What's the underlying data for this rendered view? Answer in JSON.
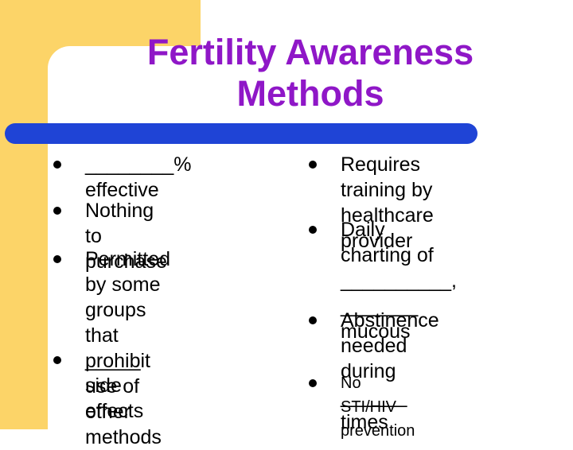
{
  "title": {
    "line1": "Fertility Awareness",
    "line2": "Methods"
  },
  "left_bullets": [
    "________% effective",
    "Nothing to purchase",
    "Permitted by some\ngroups that prohibit\nuse of other methods",
    "_____ side effects"
  ],
  "right_bullets": [
    "Requires training by\nhealthcare provider",
    "Daily charting of\n__________,\n_______ mucous",
    "Abstinence needed\nduring ______ times",
    "No STI/HIV prevention"
  ],
  "colors": {
    "accent": "#fcd468",
    "title": "#8f17c7",
    "divider": "#1f44d6"
  }
}
